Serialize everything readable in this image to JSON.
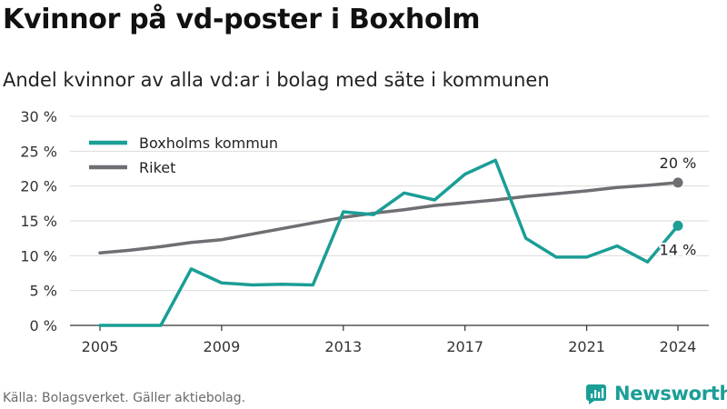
{
  "title": "Kvinnor på vd-poster i Boxholm",
  "subtitle": "Andel kvinnor av alla vd:ar i bolag med säte i kommunen",
  "source": "Källa: Bolagsverket. Gäller aktiebolag.",
  "brand": {
    "name": "Newsworthy",
    "icon": "newsworthy-logo-icon",
    "color": "#1a9e96"
  },
  "chart_data": {
    "type": "line",
    "x": [
      2005,
      2006,
      2007,
      2008,
      2009,
      2010,
      2011,
      2012,
      2013,
      2014,
      2015,
      2016,
      2017,
      2018,
      2019,
      2020,
      2021,
      2022,
      2023,
      2024
    ],
    "x_ticks": [
      "2005",
      "2009",
      "2013",
      "2017",
      "2021",
      "2024"
    ],
    "y_ticks": [
      "0 %",
      "5 %",
      "10 %",
      "15 %",
      "20 %",
      "25 %",
      "30 %"
    ],
    "ylim": [
      0,
      30
    ],
    "grid": true,
    "legend_position": "top-left",
    "series": [
      {
        "name": "Boxholms kommun",
        "color": "#1a9e96",
        "values": [
          0,
          0,
          0,
          8.1,
          6.1,
          5.8,
          5.9,
          5.8,
          16.3,
          15.9,
          19.0,
          18.0,
          21.7,
          23.7,
          12.5,
          9.8,
          9.8,
          11.4,
          9.1,
          14.3
        ],
        "end_label": "14 %"
      },
      {
        "name": "Riket",
        "color": "#6f6e73",
        "values": [
          10.4,
          10.8,
          11.3,
          11.9,
          12.3,
          13.1,
          13.9,
          14.7,
          15.5,
          16.1,
          16.6,
          17.2,
          17.6,
          18.0,
          18.5,
          18.9,
          19.3,
          19.8,
          20.1,
          20.5
        ],
        "end_label": "20 %"
      }
    ]
  }
}
